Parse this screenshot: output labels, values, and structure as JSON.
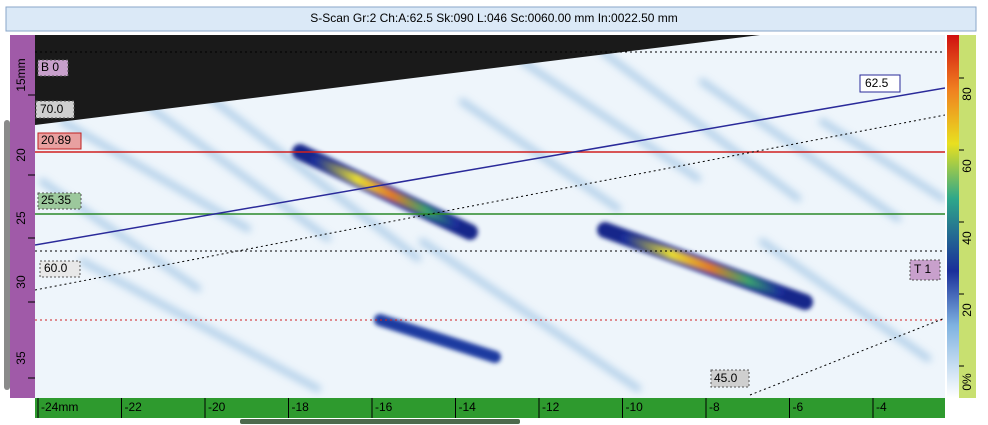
{
  "title": "S-Scan Gr:2 Ch:A:62.5 Sk:090 L:046 Sc:0060.00 mm In:0022.50 mm",
  "cursors": {
    "reference": "B 0",
    "angle_top": "70.0",
    "ref_depth": "20.89",
    "meas_depth": "25.35",
    "angle_mid": "60.0",
    "angle_line": "62.5",
    "gate": "T 1",
    "angle_bottom": "45.0"
  },
  "depth_axis": [
    "15mm",
    "20",
    "25",
    "30",
    "35"
  ],
  "index_axis": [
    "-24mm",
    "-22",
    "-20",
    "-18",
    "-16",
    "-14",
    "-12",
    "-10",
    "-8",
    "-6",
    "-4"
  ],
  "color_scale": [
    "0%",
    "20",
    "40",
    "60",
    "80"
  ]
}
